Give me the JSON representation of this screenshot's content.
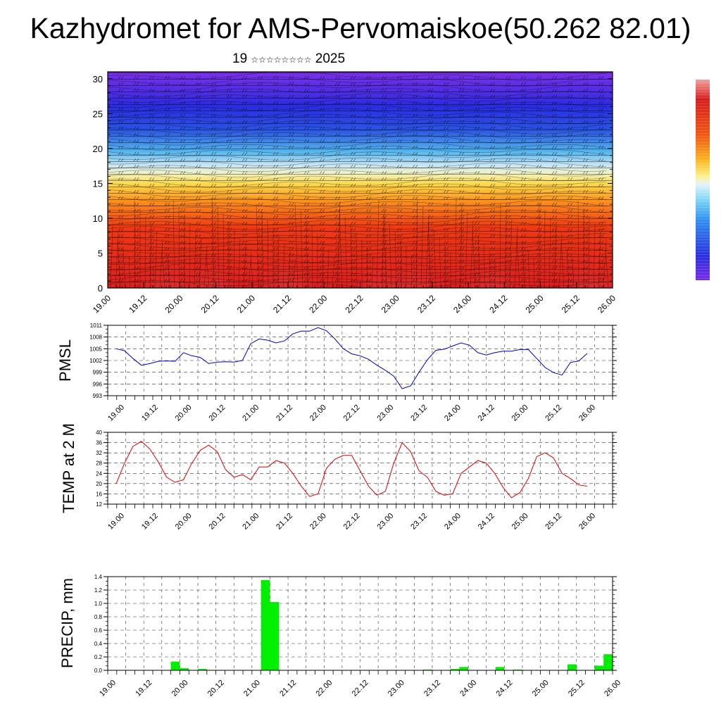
{
  "title": "Kazhydromet for AMS-Pervomaiskoe(50.262 82.01)",
  "subtitle": {
    "day": "19",
    "month_glyphs": "☆☆☆☆☆☆☆☆",
    "year": "2025"
  },
  "colors": {
    "pmsl_line": "#0000cc",
    "temp_line": "#dd0000",
    "precip_bar": "#00ee00",
    "contour_low": "#d11a1a",
    "contour_high": "#3a22e0"
  },
  "chart_data": [
    {
      "type": "heatmap",
      "name_on_chart": "",
      "x_tick_labels": [
        "19.00",
        "19.12",
        "20.00",
        "20.12",
        "21.00",
        "21.12",
        "22.00",
        "22.12",
        "23.00",
        "23.12",
        "24.00",
        "24.12",
        "25.00",
        "25.12",
        "26.00"
      ],
      "y_ticks": [
        0,
        5,
        10,
        15,
        20,
        25,
        30
      ],
      "ylim": [
        0,
        31
      ],
      "wind_barbs": true,
      "colorbar": true
    },
    {
      "type": "line",
      "ylabel": "PMSL",
      "ylim": [
        993,
        1011
      ],
      "y_ticks": [
        993,
        996,
        999,
        1002,
        1005,
        1008,
        1011
      ],
      "x_tick_labels": [
        "19.00",
        "19.12",
        "20.00",
        "20.12",
        "21.00",
        "21.12",
        "22.00",
        "22.12",
        "23.00",
        "23.12",
        "24.00",
        "24.12",
        "25.00",
        "25.12",
        "26.00"
      ],
      "values": [
        1005,
        1004.5,
        1002.5,
        1000.8,
        1001.2,
        1001.8,
        1001.9,
        1001.8,
        1004,
        1003.2,
        1002.8,
        1001.2,
        1001.6,
        1001.7,
        1001.6,
        1002,
        1006.3,
        1007.5,
        1007.2,
        1006.5,
        1007,
        1008.8,
        1009.5,
        1009.5,
        1010.4,
        1009.6,
        1007.5,
        1005,
        1003.7,
        1003.2,
        1002.3,
        1000.8,
        999.5,
        998,
        994.8,
        995.5,
        999,
        1002.2,
        1004.6,
        1004.9,
        1005.7,
        1006.5,
        1005.9,
        1004,
        1003.4,
        1004,
        1004.4,
        1004.4,
        1004.8,
        1004.8,
        1002.5,
        1000.2,
        998.9,
        998.3,
        1001.5,
        1001.9,
        1003.8
      ],
      "grid": true
    },
    {
      "type": "line",
      "ylabel": "TEMP at 2 M",
      "ylim": [
        12,
        40
      ],
      "y_ticks": [
        12,
        16,
        20,
        24,
        28,
        32,
        36,
        40
      ],
      "x_tick_labels": [
        "19.00",
        "19.12",
        "20.00",
        "20.12",
        "21.00",
        "21.12",
        "22.00",
        "22.12",
        "23.00",
        "23.12",
        "24.00",
        "24.12",
        "25.00",
        "25.12",
        "26.00"
      ],
      "values": [
        20,
        28,
        34.5,
        36.5,
        33.5,
        28.5,
        22.5,
        20.5,
        21.5,
        28,
        33,
        35,
        32.5,
        25.5,
        22.5,
        23.5,
        21.5,
        26.5,
        26.5,
        29,
        28,
        24,
        19,
        15,
        16,
        26,
        29.5,
        31,
        31,
        25,
        19,
        15.5,
        17,
        28,
        36,
        32.5,
        25,
        22.5,
        17,
        15.5,
        16,
        24,
        26.5,
        29,
        28,
        24,
        18.5,
        14.5,
        16.5,
        22,
        30.5,
        32,
        30,
        24,
        22,
        19.5,
        19
      ],
      "grid": true
    },
    {
      "type": "bar",
      "ylabel": "PRECIP, mm",
      "ylim": [
        0,
        1.4
      ],
      "y_ticks": [
        "0.0",
        "0.2",
        "0.4",
        "0.6",
        "0.8",
        "1.0",
        "1.2",
        "1.4"
      ],
      "x_tick_labels": [
        "19.00",
        "19.12",
        "20.00",
        "20.12",
        "21.00",
        "21.12",
        "22.00",
        "22.12",
        "23.00",
        "23.12",
        "24.00",
        "24.12",
        "25.00",
        "25.12",
        "26.00"
      ],
      "bars": [
        {
          "index": 8,
          "value": 0.13
        },
        {
          "index": 9,
          "value": 0.03
        },
        {
          "index": 11,
          "value": 0.02
        },
        {
          "index": 18,
          "value": 1.35
        },
        {
          "index": 19,
          "value": 1.02
        },
        {
          "index": 36,
          "value": 0.01
        },
        {
          "index": 39,
          "value": 0.02
        },
        {
          "index": 40,
          "value": 0.05
        },
        {
          "index": 44,
          "value": 0.05
        },
        {
          "index": 46,
          "value": 0.01
        },
        {
          "index": 52,
          "value": 0.09
        },
        {
          "index": 55,
          "value": 0.07
        },
        {
          "index": 56,
          "value": 0.24
        }
      ],
      "grid": true
    }
  ]
}
